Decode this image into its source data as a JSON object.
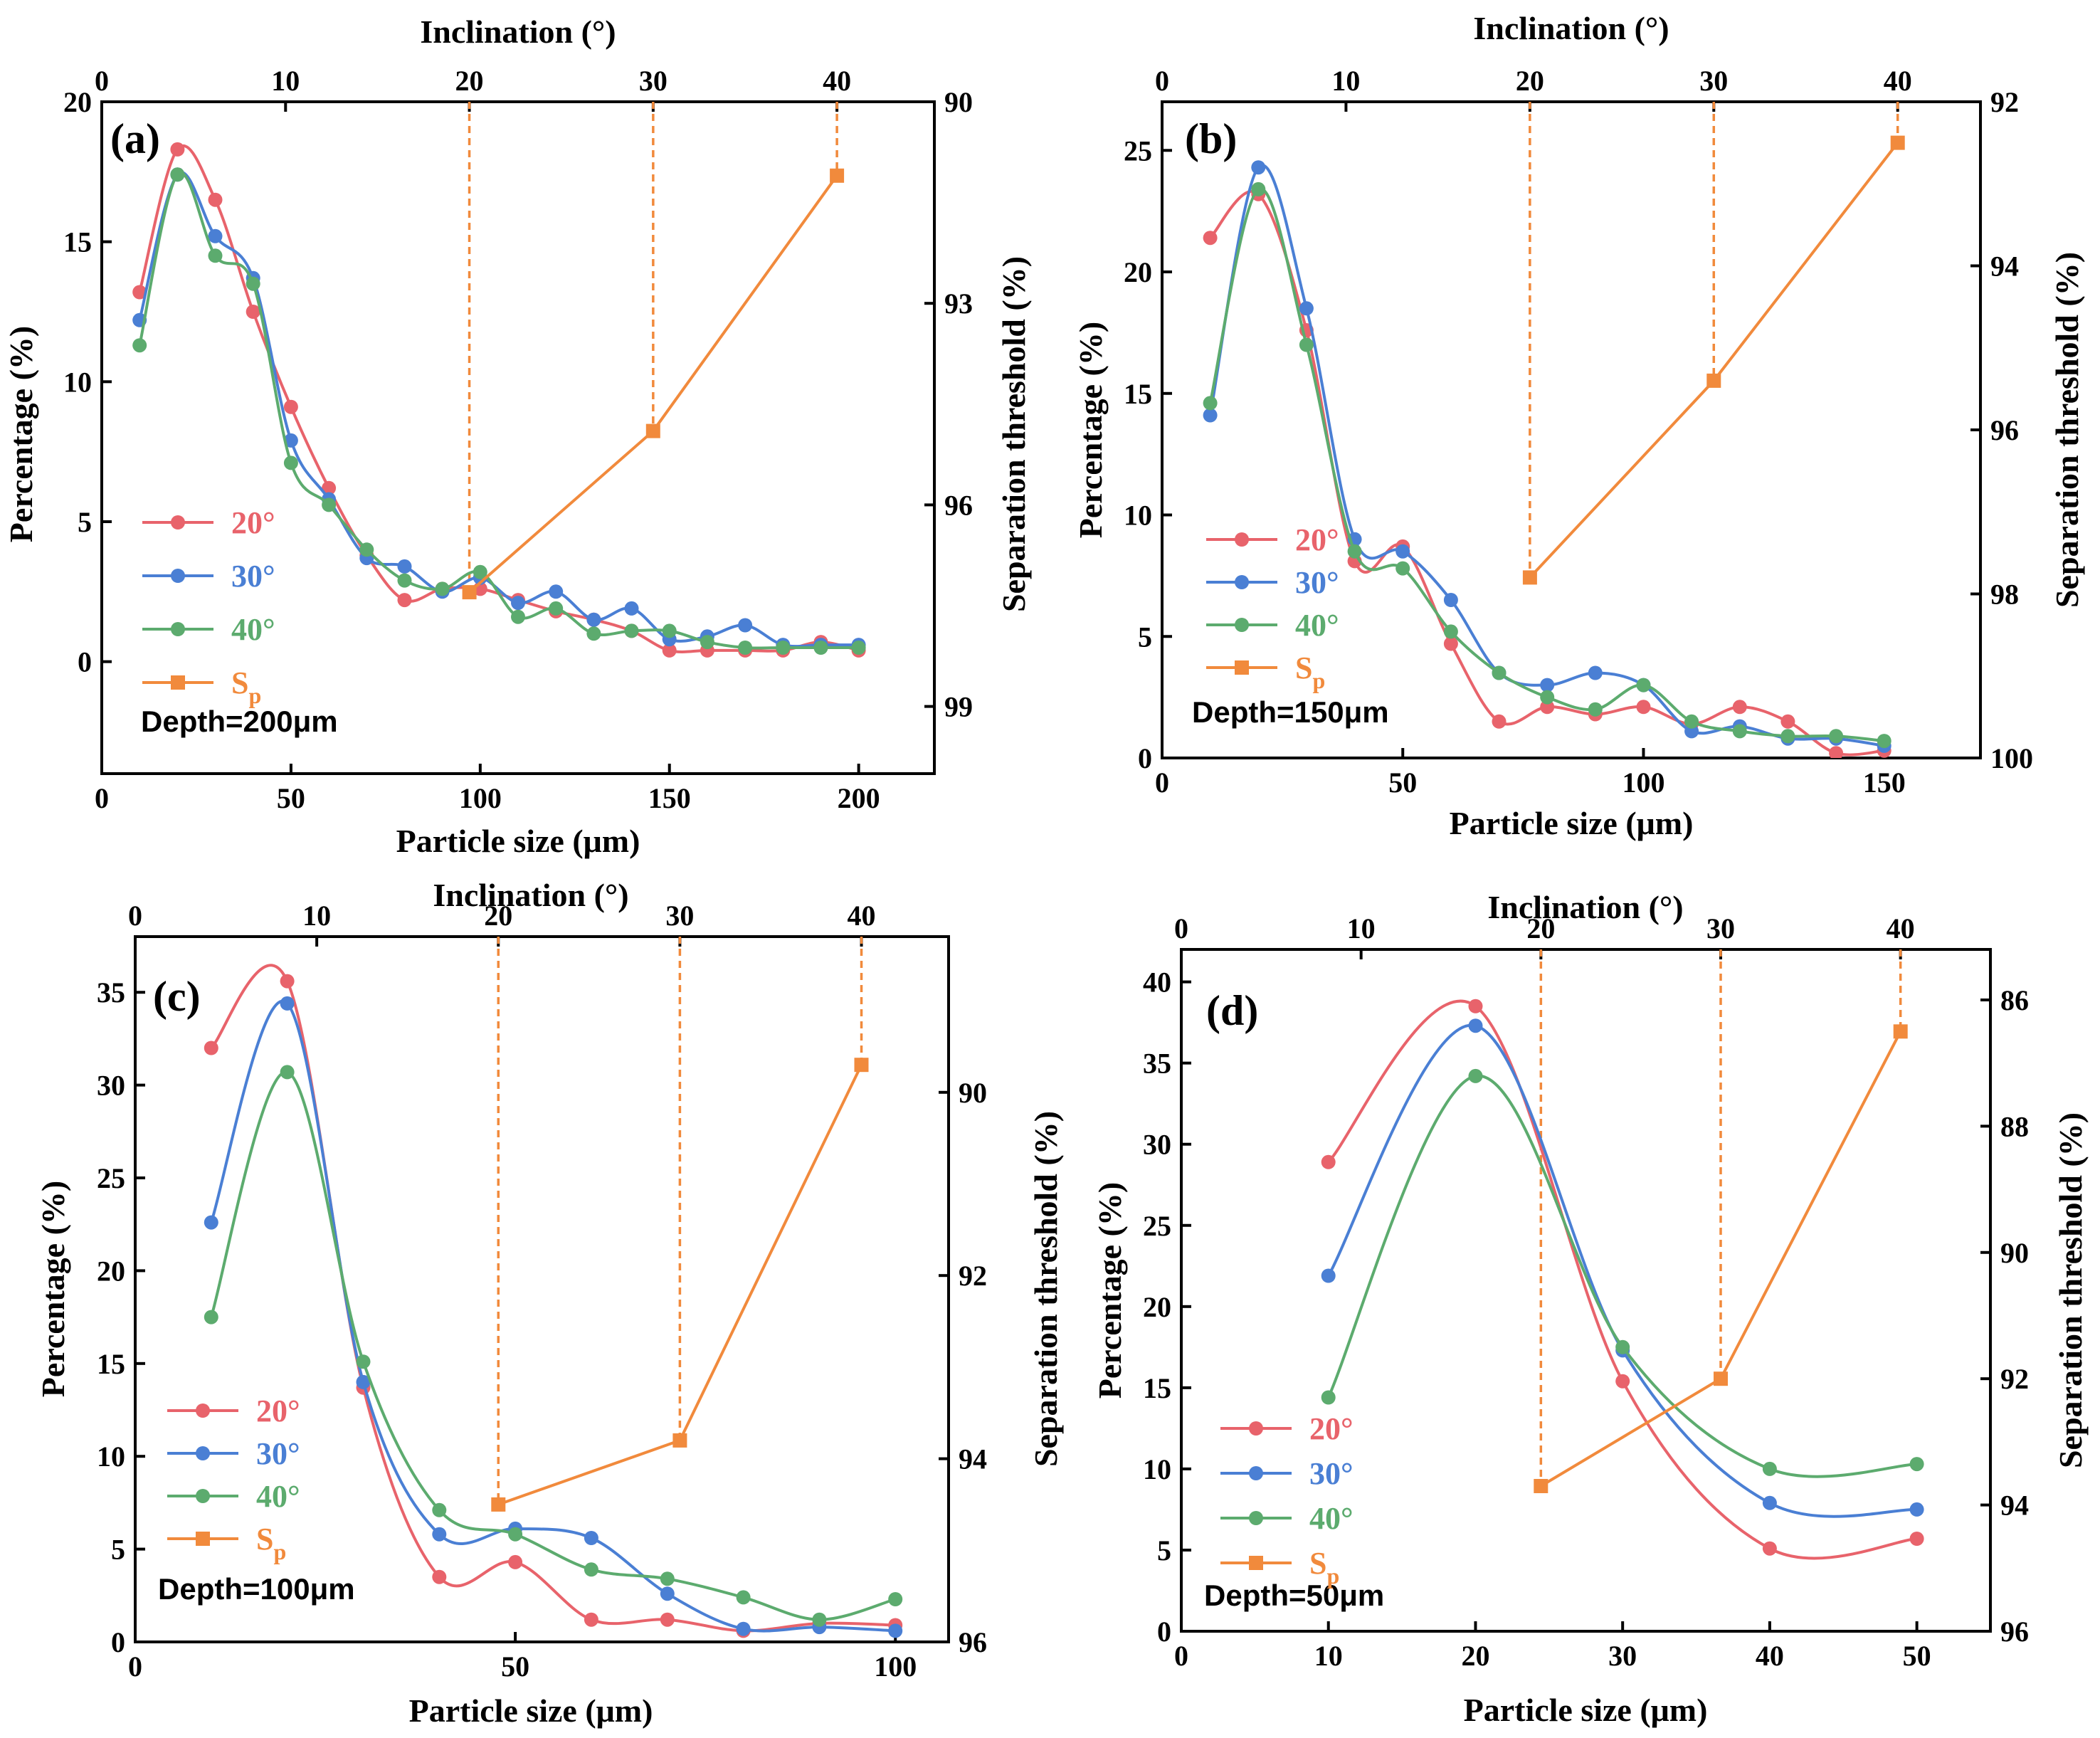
{
  "figure": {
    "colors": {
      "s20": "#e8636b",
      "s30": "#4a7fd4",
      "s40": "#5cab6e",
      "sp": "#f18a3c"
    }
  },
  "chart_data": [
    {
      "id": "a",
      "type": "line",
      "panel_label": "(a)",
      "depth_label": "Depth=200μm",
      "xlabel": "Particle size (μm)",
      "ylabel": "Percentage (%)",
      "ylabel_right": "Separation threshold (%)",
      "xlabel_top": "Inclination (°)",
      "xlim": [
        0,
        220
      ],
      "xticks": [
        0,
        50,
        100,
        150,
        200
      ],
      "ylim": [
        -4,
        20
      ],
      "yticks": [
        0,
        5,
        10,
        15,
        20
      ],
      "right_lim": [
        90,
        100
      ],
      "right_ticks": [
        90,
        93,
        96,
        99
      ],
      "right_inverted": true,
      "top_lim": [
        0,
        45.3
      ],
      "top_ticks": [
        0,
        10,
        20,
        30,
        40
      ],
      "x": [
        10,
        20,
        30,
        40,
        50,
        60,
        70,
        80,
        90,
        100,
        110,
        120,
        130,
        140,
        150,
        160,
        170,
        180,
        190,
        200
      ],
      "series": [
        {
          "name": "20°",
          "color_key": "s20",
          "values": [
            13.2,
            18.3,
            16.5,
            12.5,
            9.1,
            6.2,
            3.8,
            2.2,
            2.6,
            2.6,
            2.2,
            1.8,
            1.5,
            1.1,
            0.4,
            0.4,
            0.4,
            0.4,
            0.7,
            0.4
          ]
        },
        {
          "name": "30°",
          "color_key": "s30",
          "values": [
            12.2,
            17.4,
            15.2,
            13.7,
            7.9,
            5.8,
            3.7,
            3.4,
            2.5,
            3.0,
            2.1,
            2.5,
            1.5,
            1.9,
            0.8,
            0.9,
            1.3,
            0.6,
            0.6,
            0.6
          ]
        },
        {
          "name": "40°",
          "color_key": "s40",
          "values": [
            11.3,
            17.4,
            14.5,
            13.5,
            7.1,
            5.6,
            4.0,
            2.9,
            2.6,
            3.2,
            1.6,
            1.9,
            1.0,
            1.1,
            1.1,
            0.7,
            0.5,
            0.5,
            0.5,
            0.5
          ]
        }
      ],
      "sp": {
        "name": "S",
        "sub": "p",
        "inclination": [
          20,
          30,
          40
        ],
        "threshold": [
          97.3,
          94.9,
          91.1
        ]
      }
    },
    {
      "id": "b",
      "type": "line",
      "panel_label": "(b)",
      "depth_label": "Depth=150μm",
      "xlabel": "Particle size (μm)",
      "ylabel": "Percentage (%)",
      "ylabel_right": "Separation threshold (%)",
      "xlabel_top": "Inclination (°)",
      "xlim": [
        0,
        170
      ],
      "xticks": [
        0,
        50,
        100,
        150
      ],
      "ylim": [
        0,
        27
      ],
      "yticks": [
        0,
        5,
        10,
        15,
        20,
        25
      ],
      "right_lim": [
        92,
        100
      ],
      "right_ticks": [
        92,
        94,
        96,
        98,
        100
      ],
      "right_inverted": true,
      "top_lim": [
        0,
        44.5
      ],
      "top_ticks": [
        0,
        10,
        20,
        30,
        40
      ],
      "x": [
        10,
        20,
        30,
        40,
        50,
        60,
        70,
        80,
        90,
        100,
        110,
        120,
        130,
        140,
        150
      ],
      "series": [
        {
          "name": "20°",
          "color_key": "s20",
          "values": [
            21.4,
            23.2,
            17.6,
            8.1,
            8.7,
            4.7,
            1.5,
            2.1,
            1.8,
            2.1,
            1.4,
            2.1,
            1.5,
            0.2,
            0.3
          ]
        },
        {
          "name": "30°",
          "color_key": "s30",
          "values": [
            14.1,
            24.3,
            18.5,
            9.0,
            8.5,
            6.5,
            3.5,
            3.0,
            3.5,
            3.0,
            1.1,
            1.3,
            0.8,
            0.8,
            0.5
          ]
        },
        {
          "name": "40°",
          "color_key": "s40",
          "values": [
            14.6,
            23.4,
            17.0,
            8.5,
            7.8,
            5.2,
            3.5,
            2.5,
            2.0,
            3.0,
            1.5,
            1.1,
            0.9,
            0.9,
            0.7
          ]
        }
      ],
      "sp": {
        "name": "S",
        "sub": "p",
        "inclination": [
          20,
          30,
          40
        ],
        "threshold": [
          97.8,
          95.4,
          92.5
        ]
      }
    },
    {
      "id": "c",
      "type": "line",
      "panel_label": "(c)",
      "depth_label": "Depth=100μm",
      "xlabel": "Particle size (μm)",
      "ylabel": "Percentage (%)",
      "ylabel_right": "Separation threshold (%)",
      "xlabel_top": "Inclination (°)",
      "xlim": [
        0,
        107
      ],
      "xticks": [
        0,
        50,
        100
      ],
      "ylim": [
        0,
        38
      ],
      "yticks": [
        0,
        5,
        10,
        15,
        20,
        25,
        30,
        35
      ],
      "right_lim": [
        88.3,
        96
      ],
      "right_ticks": [
        90,
        92,
        94,
        96
      ],
      "right_inverted": true,
      "top_lim": [
        0,
        44.8
      ],
      "top_ticks": [
        0,
        10,
        20,
        30,
        40
      ],
      "x": [
        10,
        20,
        30,
        40,
        50,
        60,
        70,
        80,
        90,
        100
      ],
      "series": [
        {
          "name": "20°",
          "color_key": "s20",
          "values": [
            32.0,
            35.6,
            13.7,
            3.5,
            4.3,
            1.2,
            1.2,
            0.6,
            1.0,
            0.9
          ]
        },
        {
          "name": "30°",
          "color_key": "s30",
          "values": [
            22.6,
            34.4,
            14.0,
            5.8,
            6.1,
            5.6,
            2.6,
            0.7,
            0.8,
            0.6
          ]
        },
        {
          "name": "40°",
          "color_key": "s40",
          "values": [
            17.5,
            30.7,
            15.1,
            7.1,
            5.8,
            3.9,
            3.4,
            2.4,
            1.2,
            2.3
          ]
        }
      ],
      "sp": {
        "name": "S",
        "sub": "p",
        "inclination": [
          20,
          30,
          40
        ],
        "threshold": [
          94.5,
          93.8,
          89.7
        ]
      }
    },
    {
      "id": "d",
      "type": "line",
      "panel_label": "(d)",
      "depth_label": "Depth=50μm",
      "xlabel": "Particle size (μm)",
      "ylabel": "Percentage (%)",
      "ylabel_right": "Separation threshold (%)",
      "xlabel_top": "Inclination (°)",
      "xlim": [
        0,
        55
      ],
      "xticks": [
        0,
        10,
        20,
        30,
        40,
        50
      ],
      "ylim": [
        0,
        42
      ],
      "yticks": [
        0,
        5,
        10,
        15,
        20,
        25,
        30,
        35,
        40
      ],
      "right_lim": [
        85.2,
        96
      ],
      "right_ticks": [
        86,
        88,
        90,
        92,
        94,
        96
      ],
      "right_inverted": true,
      "top_lim": [
        0,
        45
      ],
      "top_ticks": [
        0,
        10,
        20,
        30,
        40
      ],
      "x": [
        10,
        20,
        30,
        40,
        50
      ],
      "series": [
        {
          "name": "20°",
          "color_key": "s20",
          "values": [
            28.9,
            38.5,
            15.4,
            5.1,
            5.7
          ]
        },
        {
          "name": "30°",
          "color_key": "s30",
          "values": [
            21.9,
            37.3,
            17.3,
            7.9,
            7.5
          ]
        },
        {
          "name": "40°",
          "color_key": "s40",
          "values": [
            14.4,
            34.2,
            17.5,
            10.0,
            10.3
          ]
        }
      ],
      "sp": {
        "name": "S",
        "sub": "p",
        "inclination": [
          20,
          30,
          40
        ],
        "threshold": [
          93.7,
          92.0,
          86.5
        ]
      }
    }
  ]
}
